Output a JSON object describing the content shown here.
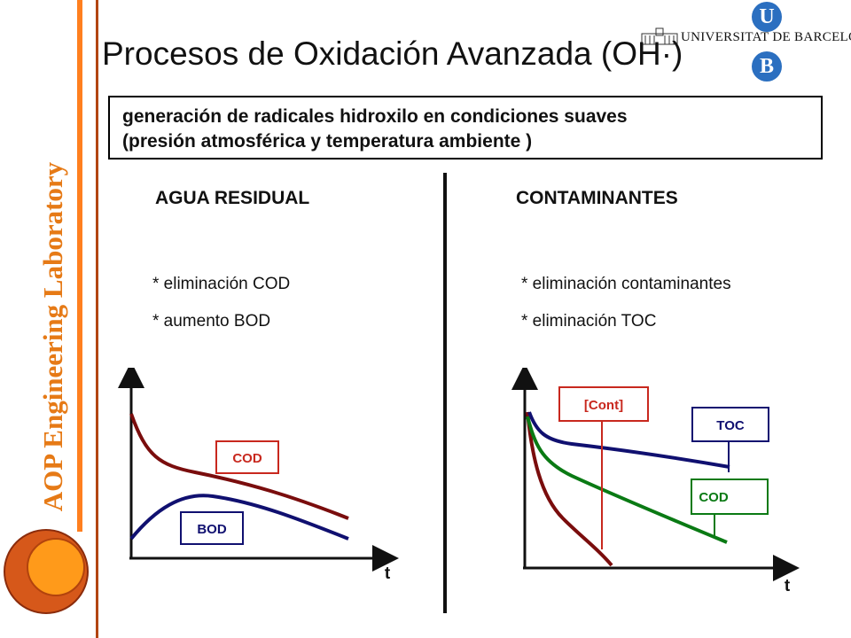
{
  "slide": {
    "title": "Procesos de Oxidación Avanzada (OH·)",
    "sidebar_label": "AOP Engineering Laboratory",
    "university": {
      "name": "UNIVERSITAT DE BARCELONA",
      "mark_top": "U",
      "mark_bottom": "B"
    },
    "intro_line1": "generación de radicales hidroxilo en condiciones suaves",
    "intro_line2": "(presión atmosférica y temperatura ambiente )",
    "left": {
      "heading": "AGUA RESIDUAL",
      "items": [
        "* eliminación COD",
        "* aumento BOD"
      ]
    },
    "right": {
      "heading": "CONTAMINANTES",
      "items": [
        "* eliminación contaminantes",
        "* eliminación TOC"
      ]
    }
  },
  "diagrams": {
    "left": {
      "x_label": "t",
      "curves": [
        {
          "label": "COD",
          "color": "#7a0d0d"
        },
        {
          "label": "BOD",
          "color": "#101070"
        }
      ]
    },
    "right": {
      "x_label": "t",
      "curves": [
        {
          "label": "[Cont]",
          "color": "#7a0d0d"
        },
        {
          "label": "TOC",
          "color": "#101070"
        },
        {
          "label": "COD",
          "color": "#0a7a14"
        }
      ]
    }
  }
}
